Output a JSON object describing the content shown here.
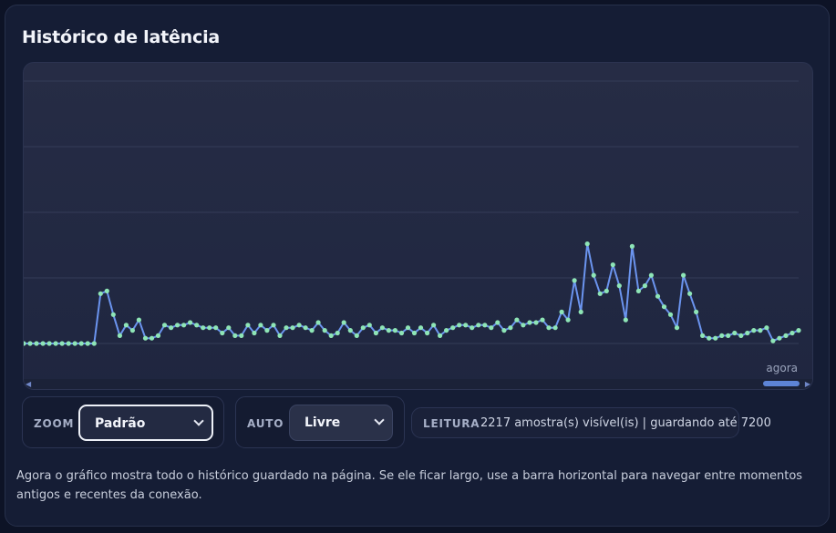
{
  "panel": {
    "title": "Histórico de latência"
  },
  "chart": {
    "now_label": "agora",
    "scrollbar_left_arrow": "◀",
    "scrollbar_right_arrow": "▶"
  },
  "chart_data": {
    "type": "line",
    "title": "",
    "xlabel": "",
    "ylabel": "",
    "grid": true,
    "line_color": "#6b94ef",
    "point_color": "#8ee5b6",
    "ylim": [
      0,
      100
    ],
    "y": [
      0,
      0,
      0,
      0,
      0,
      0,
      0,
      0,
      0,
      0,
      0,
      0,
      19,
      20,
      11,
      3,
      7,
      5,
      9,
      2,
      2,
      3,
      7,
      6,
      7,
      7,
      8,
      7,
      6,
      6,
      6,
      4,
      6,
      3,
      3,
      7,
      4,
      7,
      5,
      7,
      3,
      6,
      6,
      7,
      6,
      5,
      8,
      5,
      3,
      4,
      8,
      5,
      3,
      6,
      7,
      4,
      6,
      5,
      5,
      4,
      6,
      4,
      6,
      4,
      7,
      3,
      5,
      6,
      7,
      7,
      6,
      7,
      7,
      6,
      8,
      5,
      6,
      9,
      7,
      8,
      8,
      9,
      6,
      6,
      12,
      9,
      24,
      12,
      38,
      26,
      19,
      20,
      30,
      22,
      9,
      37,
      20,
      22,
      26,
      18,
      14,
      11,
      6,
      26,
      19,
      12,
      3,
      2,
      2,
      3,
      3,
      4,
      3,
      4,
      5,
      5,
      6,
      1,
      2,
      3,
      4,
      5
    ]
  },
  "controls": {
    "zoom_label": "ZOOM",
    "zoom_value": "Padrão",
    "auto_label": "AUTO",
    "auto_value": "Livre"
  },
  "reading": {
    "label": "LEITURA",
    "text": "2217 amostra(s) visível(is) | guardando até 7200"
  },
  "note": "Agora o gráfico mostra todo o histórico guardado na página. Se ele ficar largo, use a barra horizontal para navegar entre momentos antigos e recentes da conexão.",
  "colors": {
    "accent": "#6b94ef",
    "points": "#8ee5b6",
    "panel_bg": "#151d35"
  }
}
